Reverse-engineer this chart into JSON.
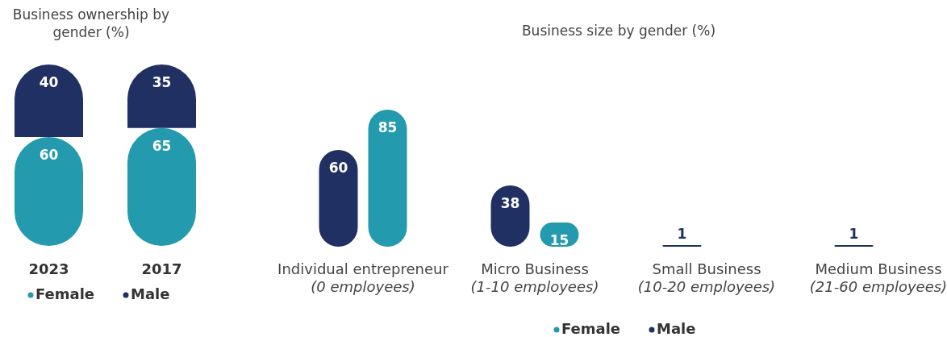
{
  "chart_data": [
    {
      "type": "bar",
      "title": "Business ownership by\ngender (%)",
      "stacked": true,
      "categories": [
        "2023",
        "2017"
      ],
      "data_labels": true,
      "legend": "bottom",
      "series": [
        {
          "name": "Female",
          "color": "#239aad",
          "values": [
            60,
            65
          ]
        },
        {
          "name": "Male",
          "color": "#213063",
          "values": [
            40,
            35
          ]
        }
      ]
    },
    {
      "type": "bar",
      "title": "Business size by gender (%)",
      "categories": [
        "Individual entrepreneur\n(0 employees)",
        "Micro Business\n(1-10 employees)",
        "Small Business\n(10-20 employees)",
        "Medium Business\n(21-60 employees)"
      ],
      "data_labels": true,
      "legend": "bottom",
      "series": [
        {
          "name": "Female",
          "color": "#239aad",
          "values": [
            85,
            15,
            null,
            null
          ]
        },
        {
          "name": "Male",
          "color": "#213063",
          "values": [
            60,
            38,
            1,
            1
          ]
        }
      ]
    }
  ]
}
